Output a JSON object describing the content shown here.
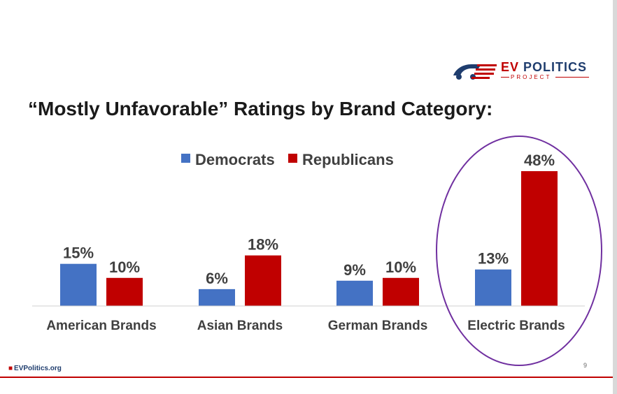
{
  "slide": {
    "title": "“Mostly Unfavorable” Ratings by Brand Category:",
    "page_number": "9",
    "footer_text": "EVPolitics.org",
    "brand": {
      "title_ev": "EV",
      "title_rest": "POLITICS",
      "subtitle": "PROJECT"
    },
    "colors": {
      "accent_red": "#c00000",
      "navy": "#1f3d6e",
      "democrats": "#4472c4",
      "republicans": "#c00000",
      "highlight": "#7030a0"
    }
  },
  "chart_data": {
    "type": "bar",
    "title": "“Mostly Unfavorable” Ratings by Brand Category:",
    "categories": [
      "American Brands",
      "Asian Brands",
      "German Brands",
      "Electric Brands"
    ],
    "series": [
      {
        "name": "Democrats",
        "values": [
          15,
          6,
          9,
          13
        ],
        "labels": [
          "15%",
          "6%",
          "9%",
          "13%"
        ]
      },
      {
        "name": "Republicans",
        "values": [
          10,
          18,
          10,
          48
        ],
        "labels": [
          "10%",
          "18%",
          "10%",
          "48%"
        ]
      }
    ],
    "ylim": [
      0,
      48
    ],
    "xlabel": "",
    "ylabel": "",
    "grid": false,
    "legend": "top-center",
    "highlighted_category": "Electric Brands"
  }
}
